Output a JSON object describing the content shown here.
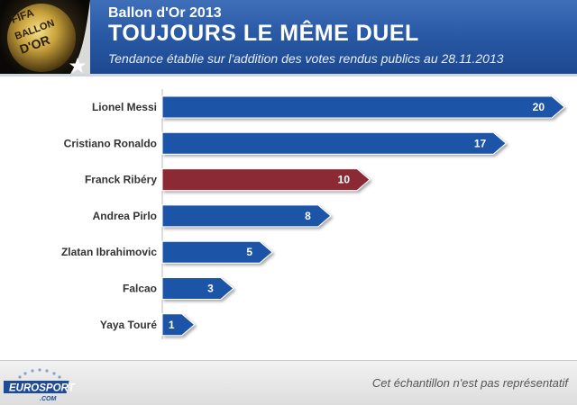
{
  "header": {
    "supertitle": "Ballon d'Or 2013",
    "title": "TOUJOURS LE MÊME DUEL",
    "subtitle": "Tendance établie sur l'addition des votes rendus publics au 28.11.2013",
    "logo_text": [
      "FIFA",
      "BALLON",
      "D'OR"
    ]
  },
  "chart_data": {
    "type": "bar",
    "orientation": "horizontal",
    "title": "TOUJOURS LE MÊME DUEL",
    "categories": [
      "Lionel Messi",
      "Cristiano Ronaldo",
      "Franck Ribéry",
      "Andrea Pirlo",
      "Zlatan Ibrahimovic",
      "Falcao",
      "Yaya Touré"
    ],
    "values": [
      20,
      17,
      10,
      8,
      5,
      3,
      1
    ],
    "xlim": [
      0,
      20
    ],
    "grid": false,
    "legend": "none",
    "colors": {
      "default": "#1e55a8",
      "highlight": "#8b2a35",
      "label": "#333333",
      "value_label": "#ffffff"
    },
    "highlight_category": "Franck Ribéry"
  },
  "footer": {
    "brand_main": "EUROSPORT",
    "brand_domain": ".COM",
    "note": "Cet échantillon n'est pas représentatif"
  }
}
